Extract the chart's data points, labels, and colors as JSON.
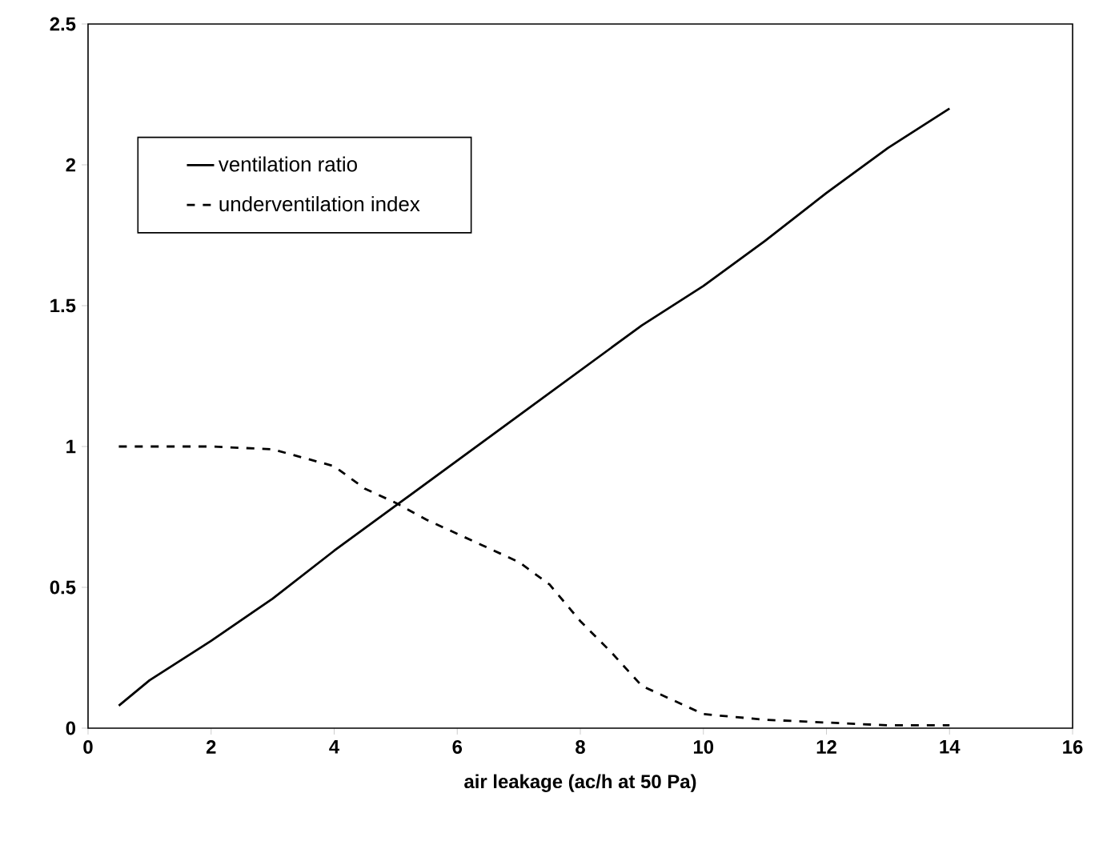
{
  "chart_data": {
    "type": "line",
    "xlabel": "air leakage (ac/h at 50 Pa)",
    "xlim": [
      0,
      16
    ],
    "xticks": [
      0,
      2,
      4,
      6,
      8,
      10,
      12,
      14,
      16
    ],
    "ylim": [
      0,
      2.5
    ],
    "yticks": [
      0,
      0.5,
      1,
      1.5,
      2,
      2.5
    ],
    "legend": "top left",
    "grid": false,
    "series": [
      {
        "name": "ventilation ratio",
        "color": "#000000",
        "line_style": "solid",
        "x": [
          0.5,
          1,
          2,
          3,
          4,
          5,
          6,
          7,
          8,
          9,
          10,
          11,
          12,
          13,
          14
        ],
        "values": [
          0.08,
          0.17,
          0.31,
          0.46,
          0.63,
          0.79,
          0.95,
          1.11,
          1.27,
          1.43,
          1.57,
          1.73,
          1.9,
          2.06,
          2.2
        ]
      },
      {
        "name": "underventilation index",
        "color": "#000000",
        "line_style": "dashed",
        "x": [
          0.5,
          1,
          2,
          3,
          3.5,
          4,
          4.5,
          5,
          5.5,
          6,
          6.5,
          7,
          7.5,
          8,
          8.5,
          9,
          9.5,
          10,
          11,
          12,
          13,
          14
        ],
        "values": [
          1,
          1,
          1,
          0.99,
          0.96,
          0.93,
          0.85,
          0.8,
          0.74,
          0.69,
          0.64,
          0.59,
          0.51,
          0.38,
          0.27,
          0.15,
          0.1,
          0.05,
          0.03,
          0.02,
          0.01,
          0.01
        ]
      }
    ]
  }
}
